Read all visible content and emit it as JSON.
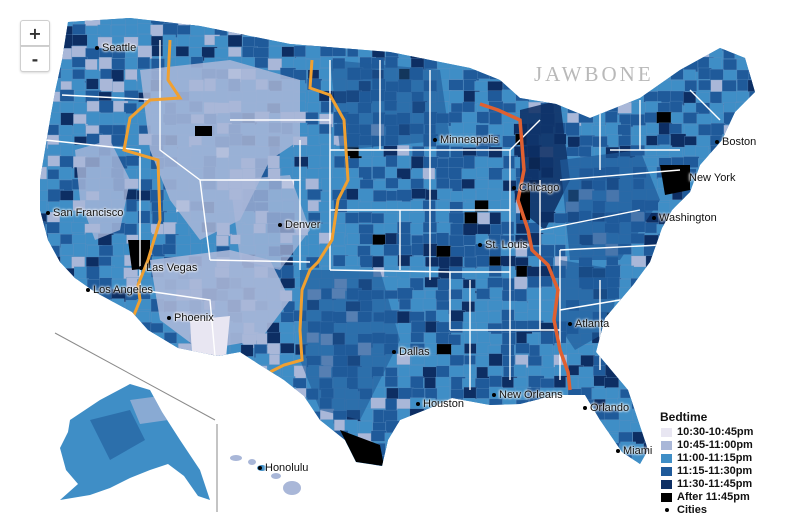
{
  "controls": {
    "zoom_in": "+",
    "zoom_out": "-"
  },
  "brand": "JAWBONE",
  "cities": [
    {
      "name": "Seattle",
      "id": "seattle"
    },
    {
      "name": "San Francisco",
      "id": "san-francisco"
    },
    {
      "name": "Las Vegas",
      "id": "las-vegas"
    },
    {
      "name": "Los Angeles",
      "id": "los-angeles"
    },
    {
      "name": "Phoenix",
      "id": "phoenix"
    },
    {
      "name": "Denver",
      "id": "denver"
    },
    {
      "name": "Dallas",
      "id": "dallas"
    },
    {
      "name": "Houston",
      "id": "houston"
    },
    {
      "name": "Minneapolis",
      "id": "minneapolis"
    },
    {
      "name": "Chicago",
      "id": "chicago"
    },
    {
      "name": "St. Louis",
      "id": "st-louis"
    },
    {
      "name": "New Orleans",
      "id": "new-orleans"
    },
    {
      "name": "Atlanta",
      "id": "atlanta"
    },
    {
      "name": "Orlando",
      "id": "orlando"
    },
    {
      "name": "Miami",
      "id": "miami"
    },
    {
      "name": "Washington",
      "id": "washington"
    },
    {
      "name": "New York",
      "id": "new-york"
    },
    {
      "name": "Boston",
      "id": "boston"
    },
    {
      "name": "Honolulu",
      "id": "honolulu"
    }
  ],
  "legend": {
    "title": "Bedtime",
    "items": [
      {
        "label": "10:30-10:45pm",
        "color": "#e8e6f2"
      },
      {
        "label": "10:45-11:00pm",
        "color": "#a9b7d8"
      },
      {
        "label": "11:00-11:15pm",
        "color": "#3f8ec6"
      },
      {
        "label": "11:15-11:30pm",
        "color": "#1f5a9a"
      },
      {
        "label": "11:30-11:45pm",
        "color": "#0d2e63"
      },
      {
        "label": "After 11:45pm",
        "color": "#000000"
      }
    ],
    "cities_label": "Cities"
  },
  "colors": {
    "timezone_mountain": "#f0a030",
    "timezone_central_east": "#e06030",
    "state_border": "#ffffff"
  }
}
